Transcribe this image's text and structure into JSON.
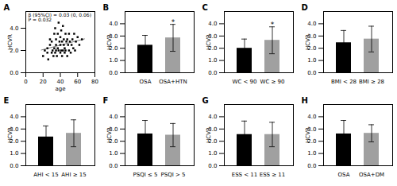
{
  "chart_data": [
    {
      "type": "scatter",
      "title": "A",
      "x": [
        20,
        22,
        25,
        25,
        26,
        28,
        28,
        30,
        30,
        31,
        32,
        33,
        33,
        34,
        34,
        35,
        35,
        35,
        36,
        37,
        37,
        38,
        38,
        39,
        40,
        40,
        40,
        41,
        41,
        42,
        42,
        43,
        43,
        44,
        44,
        45,
        45,
        46,
        46,
        47,
        48,
        48,
        49,
        50,
        50,
        51,
        52,
        53,
        54,
        55,
        56,
        57,
        58,
        60,
        62,
        65
      ],
      "values": [
        1.5,
        2.0,
        1.8,
        2.2,
        1.2,
        2.5,
        3.0,
        1.8,
        2.8,
        2.0,
        1.5,
        2.2,
        3.5,
        1.8,
        4.0,
        2.0,
        2.5,
        3.0,
        1.5,
        2.2,
        3.5,
        2.0,
        4.5,
        2.8,
        1.8,
        2.5,
        3.2,
        2.0,
        3.8,
        1.5,
        2.8,
        2.0,
        4.2,
        2.5,
        3.0,
        1.8,
        2.2,
        3.5,
        2.0,
        2.8,
        1.5,
        3.0,
        2.5,
        2.0,
        3.5,
        2.8,
        1.8,
        2.5,
        3.0,
        2.2,
        3.5,
        2.0,
        2.8,
        3.2,
        2.5,
        3.0
      ],
      "color": "black",
      "marker": "square",
      "regression": {
        "x": [
          18,
          68
        ],
        "values": [
          2.04,
          3.04
        ],
        "color": "gray"
      },
      "annotations": [
        {
          "text": "β (95%CI) = 0.03 (0, 0.06)\nP = 0.032"
        }
      ],
      "xlabel": "age",
      "ylabel": "HCVR",
      "xlim": [
        0,
        80
      ],
      "xticks": [
        0,
        20,
        40,
        60,
        80
      ],
      "ylim": [
        0,
        5.5
      ],
      "yticks": [
        0,
        2,
        4
      ]
    },
    {
      "type": "bar",
      "title": "B",
      "categories": [
        "OSA",
        "OSA+HTN"
      ],
      "values": [
        2.25,
        2.85
      ],
      "errors": [
        0.8,
        1.1
      ],
      "colors": [
        "#000000",
        "#a0a0a0"
      ],
      "ylabel": "HCVR",
      "ylim": [
        0,
        5
      ],
      "yticks": [
        0,
        1,
        2,
        3,
        4
      ],
      "annotations": [
        {
          "text": "*",
          "at": "OSA+HTN"
        }
      ]
    },
    {
      "type": "bar",
      "title": "C",
      "categories": [
        "WC < 90",
        "WC ≥ 90"
      ],
      "values": [
        2.0,
        2.65
      ],
      "errors": [
        0.75,
        1.1
      ],
      "colors": [
        "#000000",
        "#a0a0a0"
      ],
      "ylabel": "HCVR",
      "ylim": [
        0,
        5
      ],
      "yticks": [
        0,
        1,
        2,
        3,
        4
      ],
      "annotations": [
        {
          "text": "*",
          "at": "WC ≥ 90"
        }
      ]
    },
    {
      "type": "bar",
      "title": "D",
      "categories": [
        "BMI < 28",
        "BMI ≥ 28"
      ],
      "values": [
        2.45,
        2.75
      ],
      "errors": [
        1.0,
        1.05
      ],
      "colors": [
        "#000000",
        "#a0a0a0"
      ],
      "ylabel": "HCVR",
      "ylim": [
        0,
        5
      ],
      "yticks": [
        0,
        1,
        2,
        3,
        4
      ]
    },
    {
      "type": "bar",
      "title": "E",
      "categories": [
        "AHI < 15",
        "AHI ≥ 15"
      ],
      "values": [
        2.35,
        2.65
      ],
      "errors": [
        0.9,
        1.1
      ],
      "colors": [
        "#000000",
        "#a0a0a0"
      ],
      "ylabel": "HCVR",
      "ylim": [
        0,
        5
      ],
      "yticks": [
        0,
        1,
        2,
        3,
        4
      ]
    },
    {
      "type": "bar",
      "title": "F",
      "categories": [
        "PSQI ≤ 5",
        "PSQI > 5"
      ],
      "values": [
        2.6,
        2.5
      ],
      "errors": [
        1.1,
        0.95
      ],
      "colors": [
        "#000000",
        "#a0a0a0"
      ],
      "ylabel": "HCVR",
      "ylim": [
        0,
        5
      ],
      "yticks": [
        0,
        1,
        2,
        3,
        4
      ]
    },
    {
      "type": "bar",
      "title": "G",
      "categories": [
        "ESS < 11",
        "ESS ≥ 11"
      ],
      "values": [
        2.55,
        2.55
      ],
      "errors": [
        1.1,
        1.0
      ],
      "colors": [
        "#000000",
        "#a0a0a0"
      ],
      "ylabel": "HCVR",
      "ylim": [
        0,
        5
      ],
      "yticks": [
        0,
        1,
        2,
        3,
        4
      ]
    },
    {
      "type": "bar",
      "title": "H",
      "categories": [
        "OSA",
        "OSA+DM"
      ],
      "values": [
        2.6,
        2.65
      ],
      "errors": [
        1.1,
        0.7
      ],
      "colors": [
        "#000000",
        "#a0a0a0"
      ],
      "ylabel": "HCVR",
      "ylim": [
        0,
        5
      ],
      "yticks": [
        0,
        1,
        2,
        3,
        4
      ]
    }
  ]
}
